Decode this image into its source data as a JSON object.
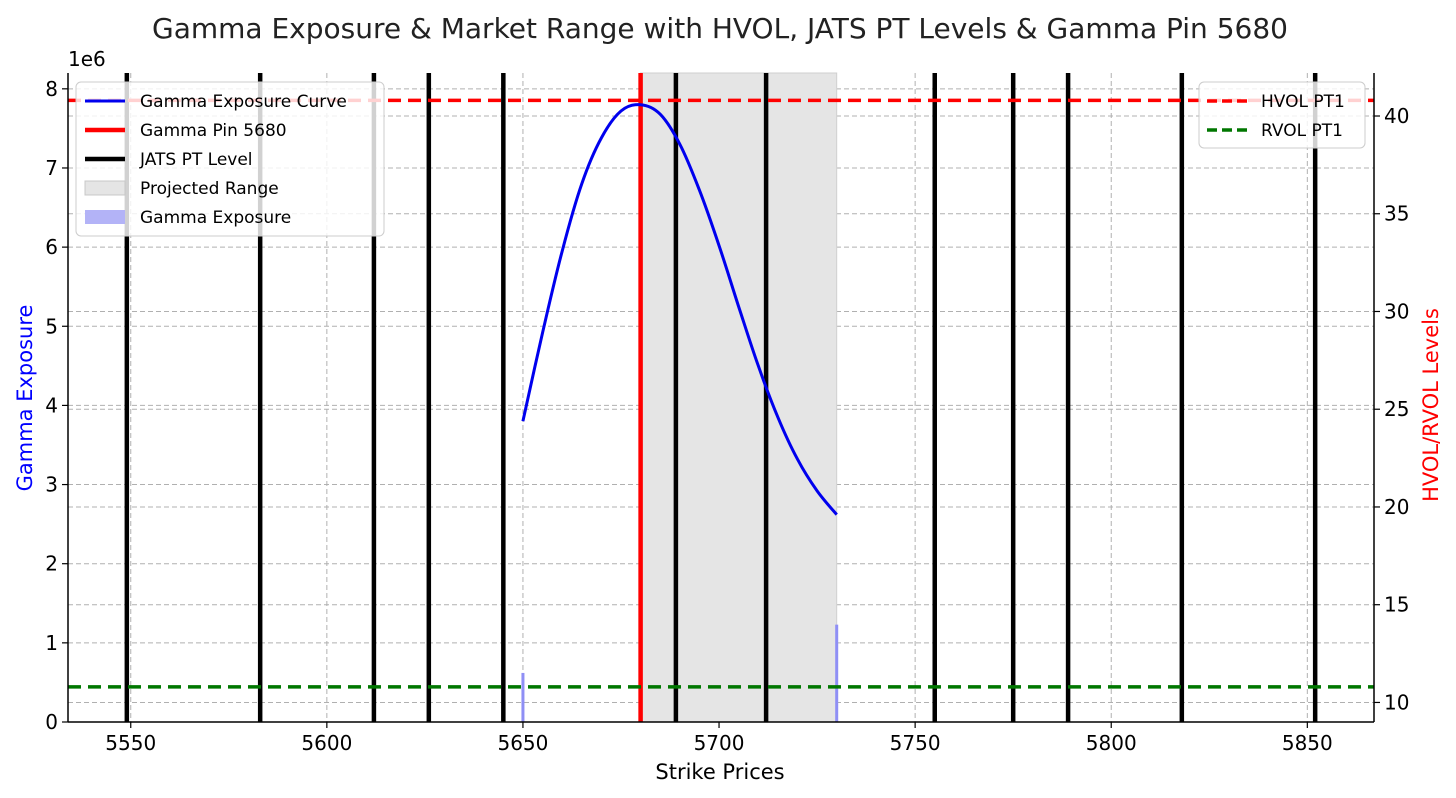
{
  "chart_data": {
    "type": "line",
    "title": "Gamma Exposure & Market Range with HVOL, JATS PT Levels & Gamma Pin 5680",
    "xlabel": "Strike Prices",
    "ylabel_left": "Gamma Exposure",
    "ylabel_right": "HVOL/RVOL Levels",
    "left_axis_offset_label": "1e6",
    "xlim": [
      5534,
      5867
    ],
    "ylim_left": [
      0,
      8.2
    ],
    "ylim_right": [
      9,
      42.2
    ],
    "x_ticks": [
      5550,
      5600,
      5650,
      5700,
      5750,
      5800,
      5850
    ],
    "x_tick_labels": [
      "5550",
      "5600",
      "5650",
      "5700",
      "5750",
      "5800",
      "5850"
    ],
    "y_left_ticks": [
      0,
      1,
      2,
      3,
      4,
      5,
      6,
      7,
      8
    ],
    "y_left_tick_labels": [
      "0",
      "1",
      "2",
      "3",
      "4",
      "5",
      "6",
      "7",
      "8"
    ],
    "y_right_ticks": [
      10,
      15,
      20,
      25,
      30,
      35,
      40
    ],
    "y_right_tick_labels": [
      "10",
      "15",
      "20",
      "25",
      "30",
      "35",
      "40"
    ],
    "grid": true,
    "colors": {
      "curve": "#0000ee",
      "gamma_pin": "#ff0000",
      "jats": "#000000",
      "range_fill": "#e5e5e5",
      "bars": "#8f8ff5",
      "hvol": "#ff0000",
      "rvol": "#007700",
      "left_label": "#0000ff",
      "right_label": "#ff0000"
    },
    "gamma_curve": {
      "name": "Gamma Exposure Curve",
      "x": [
        5650,
        5655,
        5660,
        5665,
        5670,
        5675,
        5680,
        5685,
        5690,
        5695,
        5700,
        5705,
        5710,
        5715,
        5720,
        5725,
        5730
      ],
      "y": [
        3.8,
        4.92,
        5.95,
        6.8,
        7.38,
        7.72,
        7.8,
        7.68,
        7.3,
        6.72,
        6.02,
        5.25,
        4.5,
        3.85,
        3.32,
        2.92,
        2.62
      ]
    },
    "gamma_bars": {
      "name": "Gamma Exposure",
      "x": [
        5650,
        5730
      ],
      "y": [
        0.62,
        1.23
      ]
    },
    "gamma_pin": {
      "name": "Gamma Pin 5680",
      "x": 5680
    },
    "projected_range": {
      "name": "Projected Range",
      "x": [
        5680,
        5730
      ]
    },
    "jats_levels": {
      "name": "JATS PT Level",
      "x": [
        5549,
        5583,
        5612,
        5626,
        5645,
        5689,
        5712,
        5755,
        5775,
        5789,
        5818,
        5852
      ]
    },
    "hvol": {
      "name": "HVOL PT1",
      "value": 40.8
    },
    "rvol": {
      "name": "RVOL PT1",
      "value": 10.8
    },
    "legend_left_position": "upper-left",
    "legend_right_position": "upper-right"
  }
}
